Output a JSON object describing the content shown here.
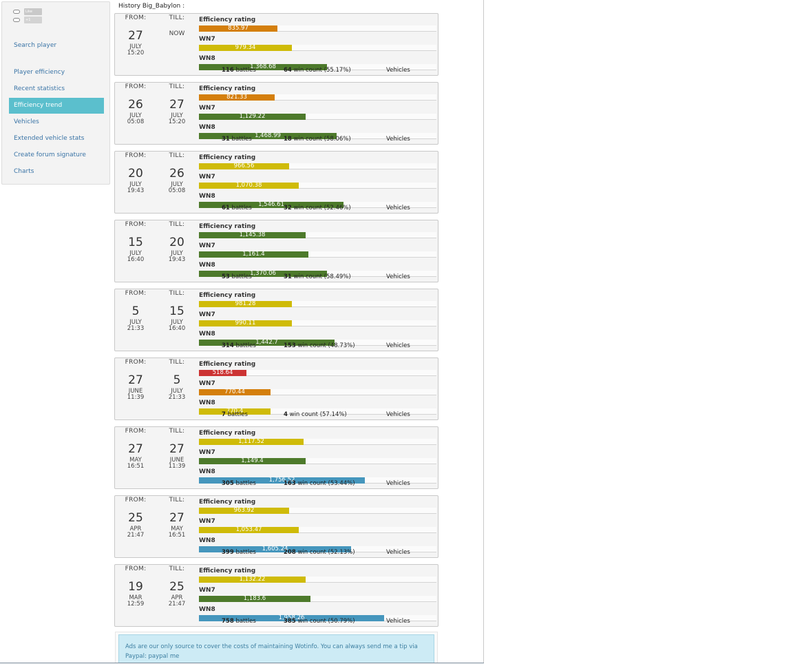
{
  "sidebar": {
    "social": {
      "fb": "Like",
      "gplus": "+1"
    },
    "items": [
      {
        "label": "Search player",
        "active": false
      },
      {
        "label": "Player efficiency",
        "active": false
      },
      {
        "label": "Recent statistics",
        "active": false
      },
      {
        "label": "Efficiency trend",
        "active": true
      },
      {
        "label": "Vehicles",
        "active": false
      },
      {
        "label": "Extended vehicle stats",
        "active": false
      },
      {
        "label": "Create forum signature",
        "active": false
      },
      {
        "label": "Charts",
        "active": false
      }
    ]
  },
  "history_title": "History Big_Babylon :",
  "labels": {
    "from": "FROM:",
    "till": "TILL:",
    "efficiency": "Efficiency rating",
    "wn7": "WN7",
    "wn8": "WN8",
    "battles": "battles",
    "win_count": "win count",
    "vehicles": "Vehicles"
  },
  "colors": {
    "orange": "#d47f0c",
    "yellow": "#cfbb08",
    "green": "#4d7a2b",
    "red": "#cc3333",
    "blue": "#4596bd"
  },
  "entries": [
    {
      "from": {
        "day": "27",
        "month": "JULY",
        "time": "15:20"
      },
      "till": {
        "now": "NOW"
      },
      "metrics": [
        {
          "label": "Efficiency rating",
          "value": "835.97",
          "fraction": 0.33,
          "color": "#d47f0c"
        },
        {
          "label": "WN7",
          "value": "979.34",
          "fraction": 0.39,
          "color": "#cfbb08"
        },
        {
          "label": "WN8",
          "value": "1,368.68",
          "fraction": 0.54,
          "color": "#4d7a2b"
        }
      ],
      "battles": "116",
      "wins": "64",
      "win_pct": "(55.17%)"
    },
    {
      "from": {
        "day": "26",
        "month": "JULY",
        "time": "05:08"
      },
      "till": {
        "day": "27",
        "month": "JULY",
        "time": "15:20"
      },
      "metrics": [
        {
          "label": "Efficiency rating",
          "value": "821.33",
          "fraction": 0.32,
          "color": "#d47f0c"
        },
        {
          "label": "WN7",
          "value": "1,129.22",
          "fraction": 0.45,
          "color": "#4d7a2b"
        },
        {
          "label": "WN8",
          "value": "1,468.99",
          "fraction": 0.58,
          "color": "#4d7a2b"
        }
      ],
      "battles": "31",
      "wins": "18",
      "win_pct": "(58.06%)"
    },
    {
      "from": {
        "day": "20",
        "month": "JULY",
        "time": "19:43"
      },
      "till": {
        "day": "26",
        "month": "JULY",
        "time": "05:08"
      },
      "metrics": [
        {
          "label": "Efficiency rating",
          "value": "966.56",
          "fraction": 0.38,
          "color": "#cfbb08"
        },
        {
          "label": "WN7",
          "value": "1,070.38",
          "fraction": 0.42,
          "color": "#cfbb08"
        },
        {
          "label": "WN8",
          "value": "1,546.61",
          "fraction": 0.61,
          "color": "#4d7a2b"
        }
      ],
      "battles": "61",
      "wins": "32",
      "win_pct": "(52.46%)"
    },
    {
      "from": {
        "day": "15",
        "month": "JULY",
        "time": "16:40"
      },
      "till": {
        "day": "20",
        "month": "JULY",
        "time": "19:43"
      },
      "metrics": [
        {
          "label": "Efficiency rating",
          "value": "1,145.38",
          "fraction": 0.45,
          "color": "#4d7a2b"
        },
        {
          "label": "WN7",
          "value": "1,161.4",
          "fraction": 0.46,
          "color": "#4d7a2b"
        },
        {
          "label": "WN8",
          "value": "1,370.06",
          "fraction": 0.54,
          "color": "#4d7a2b"
        }
      ],
      "battles": "53",
      "wins": "31",
      "win_pct": "(58.49%)"
    },
    {
      "from": {
        "day": "5",
        "month": "JULY",
        "time": "21:33"
      },
      "till": {
        "day": "15",
        "month": "JULY",
        "time": "16:40"
      },
      "metrics": [
        {
          "label": "Efficiency rating",
          "value": "981.28",
          "fraction": 0.39,
          "color": "#cfbb08"
        },
        {
          "label": "WN7",
          "value": "990.11",
          "fraction": 0.39,
          "color": "#cfbb08"
        },
        {
          "label": "WN8",
          "value": "1,442.7",
          "fraction": 0.57,
          "color": "#4d7a2b"
        }
      ],
      "battles": "314",
      "wins": "153",
      "win_pct": "(48.73%)"
    },
    {
      "from": {
        "day": "27",
        "month": "JUNE",
        "time": "11:39"
      },
      "till": {
        "day": "5",
        "month": "JULY",
        "time": "21:33"
      },
      "metrics": [
        {
          "label": "Efficiency rating",
          "value": "518.64",
          "fraction": 0.2,
          "color": "#cc3333"
        },
        {
          "label": "WN7",
          "value": "770.44",
          "fraction": 0.3,
          "color": "#d47f0c"
        },
        {
          "label": "WN8",
          "value": "770.4",
          "fraction": 0.3,
          "color": "#cfbb08"
        }
      ],
      "battles": "7",
      "wins": "4",
      "win_pct": "(57.14%)"
    },
    {
      "from": {
        "day": "27",
        "month": "MAY",
        "time": "16:51"
      },
      "till": {
        "day": "27",
        "month": "JUNE",
        "time": "11:39"
      },
      "metrics": [
        {
          "label": "Efficiency rating",
          "value": "1,117.52",
          "fraction": 0.44,
          "color": "#cfbb08"
        },
        {
          "label": "WN7",
          "value": "1,149.4",
          "fraction": 0.45,
          "color": "#4d7a2b"
        },
        {
          "label": "WN8",
          "value": "1,756.52",
          "fraction": 0.7,
          "color": "#4596bd"
        }
      ],
      "battles": "305",
      "wins": "163",
      "win_pct": "(53.44%)"
    },
    {
      "from": {
        "day": "25",
        "month": "APR",
        "time": "21:47"
      },
      "till": {
        "day": "27",
        "month": "MAY",
        "time": "16:51"
      },
      "metrics": [
        {
          "label": "Efficiency rating",
          "value": "963.92",
          "fraction": 0.38,
          "color": "#cfbb08"
        },
        {
          "label": "WN7",
          "value": "1,053.47",
          "fraction": 0.42,
          "color": "#cfbb08"
        },
        {
          "label": "WN8",
          "value": "1,605.24",
          "fraction": 0.64,
          "color": "#4596bd"
        }
      ],
      "battles": "399",
      "wins": "208",
      "win_pct": "(52.13%)"
    },
    {
      "from": {
        "day": "19",
        "month": "MAR",
        "time": "12:59"
      },
      "till": {
        "day": "25",
        "month": "APR",
        "time": "21:47"
      },
      "metrics": [
        {
          "label": "Efficiency rating",
          "value": "1,132.22",
          "fraction": 0.45,
          "color": "#cfbb08"
        },
        {
          "label": "WN7",
          "value": "1,183.6",
          "fraction": 0.47,
          "color": "#4d7a2b"
        },
        {
          "label": "WN8",
          "value": "1,958.26",
          "fraction": 0.78,
          "color": "#4596bd"
        }
      ],
      "battles": "758",
      "wins": "385",
      "win_pct": "(50.79%)"
    }
  ],
  "ad_text": "Ads are our only source to cover the costs of maintaining Wotinfo. You can always send me a tip via Paypal: paypal me"
}
